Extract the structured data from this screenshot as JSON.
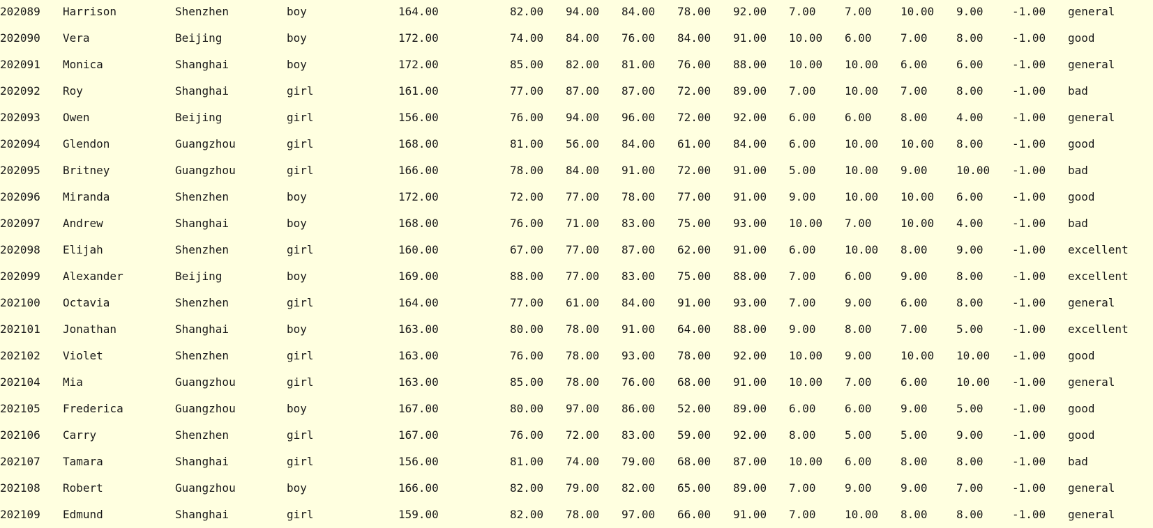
{
  "table": {
    "rows": [
      [
        "202089",
        "Harrison",
        "Shenzhen",
        "boy",
        "164.00",
        "82.00",
        "94.00",
        "84.00",
        "78.00",
        "92.00",
        "7.00",
        "7.00",
        "10.00",
        "9.00",
        "-1.00",
        "general"
      ],
      [
        "202090",
        "Vera",
        "Beijing",
        "boy",
        "172.00",
        "74.00",
        "84.00",
        "76.00",
        "84.00",
        "91.00",
        "10.00",
        "6.00",
        "7.00",
        "8.00",
        "-1.00",
        "good"
      ],
      [
        "202091",
        "Monica",
        "Shanghai",
        "boy",
        "172.00",
        "85.00",
        "82.00",
        "81.00",
        "76.00",
        "88.00",
        "10.00",
        "10.00",
        "6.00",
        "6.00",
        "-1.00",
        "general"
      ],
      [
        "202092",
        "Roy",
        "Shanghai",
        "girl",
        "161.00",
        "77.00",
        "87.00",
        "87.00",
        "72.00",
        "89.00",
        "7.00",
        "10.00",
        "7.00",
        "8.00",
        "-1.00",
        "bad"
      ],
      [
        "202093",
        "Owen",
        "Beijing",
        "girl",
        "156.00",
        "76.00",
        "94.00",
        "96.00",
        "72.00",
        "92.00",
        "6.00",
        "6.00",
        "8.00",
        "4.00",
        "-1.00",
        "general"
      ],
      [
        "202094",
        "Glendon",
        "Guangzhou",
        "girl",
        "168.00",
        "81.00",
        "56.00",
        "84.00",
        "61.00",
        "84.00",
        "6.00",
        "10.00",
        "10.00",
        "8.00",
        "-1.00",
        "good"
      ],
      [
        "202095",
        "Britney",
        "Guangzhou",
        "girl",
        "166.00",
        "78.00",
        "84.00",
        "91.00",
        "72.00",
        "91.00",
        "5.00",
        "10.00",
        "9.00",
        "10.00",
        "-1.00",
        "bad"
      ],
      [
        "202096",
        "Miranda",
        "Shenzhen",
        "boy",
        "172.00",
        "72.00",
        "77.00",
        "78.00",
        "77.00",
        "91.00",
        "9.00",
        "10.00",
        "10.00",
        "6.00",
        "-1.00",
        "good"
      ],
      [
        "202097",
        "Andrew",
        "Shanghai",
        "boy",
        "168.00",
        "76.00",
        "71.00",
        "83.00",
        "75.00",
        "93.00",
        "10.00",
        "7.00",
        "10.00",
        "4.00",
        "-1.00",
        "bad"
      ],
      [
        "202098",
        "Elijah",
        "Shenzhen",
        "girl",
        "160.00",
        "67.00",
        "77.00",
        "87.00",
        "62.00",
        "91.00",
        "6.00",
        "10.00",
        "8.00",
        "9.00",
        "-1.00",
        "excellent"
      ],
      [
        "202099",
        "Alexander",
        "Beijing",
        "boy",
        "169.00",
        "88.00",
        "77.00",
        "83.00",
        "75.00",
        "88.00",
        "7.00",
        "6.00",
        "9.00",
        "8.00",
        "-1.00",
        "excellent"
      ],
      [
        "202100",
        "Octavia",
        "Shenzhen",
        "girl",
        "164.00",
        "77.00",
        "61.00",
        "84.00",
        "91.00",
        "93.00",
        "7.00",
        "9.00",
        "6.00",
        "8.00",
        "-1.00",
        "general"
      ],
      [
        "202101",
        "Jonathan",
        "Shanghai",
        "boy",
        "163.00",
        "80.00",
        "78.00",
        "91.00",
        "64.00",
        "88.00",
        "9.00",
        "8.00",
        "7.00",
        "5.00",
        "-1.00",
        "excellent"
      ],
      [
        "202102",
        "Violet",
        "Shenzhen",
        "girl",
        "163.00",
        "76.00",
        "78.00",
        "93.00",
        "78.00",
        "92.00",
        "10.00",
        "9.00",
        "10.00",
        "10.00",
        "-1.00",
        "good"
      ],
      [
        "202104",
        "Mia",
        "Guangzhou",
        "girl",
        "163.00",
        "85.00",
        "78.00",
        "76.00",
        "68.00",
        "91.00",
        "10.00",
        "7.00",
        "6.00",
        "10.00",
        "-1.00",
        "general"
      ],
      [
        "202105",
        "Frederica",
        "Guangzhou",
        "boy",
        "167.00",
        "80.00",
        "97.00",
        "86.00",
        "52.00",
        "89.00",
        "6.00",
        "6.00",
        "9.00",
        "5.00",
        "-1.00",
        "good"
      ],
      [
        "202106",
        "Carry",
        "Shenzhen",
        "girl",
        "167.00",
        "76.00",
        "72.00",
        "83.00",
        "59.00",
        "92.00",
        "8.00",
        "5.00",
        "5.00",
        "9.00",
        "-1.00",
        "good"
      ],
      [
        "202107",
        "Tamara",
        "Shanghai",
        "girl",
        "156.00",
        "81.00",
        "74.00",
        "79.00",
        "68.00",
        "87.00",
        "10.00",
        "6.00",
        "8.00",
        "8.00",
        "-1.00",
        "bad"
      ],
      [
        "202108",
        "Robert",
        "Guangzhou",
        "boy",
        "166.00",
        "82.00",
        "79.00",
        "82.00",
        "65.00",
        "89.00",
        "7.00",
        "9.00",
        "9.00",
        "7.00",
        "-1.00",
        "general"
      ],
      [
        "202109",
        "Edmund",
        "Shanghai",
        "girl",
        "159.00",
        "82.00",
        "78.00",
        "97.00",
        "66.00",
        "91.00",
        "7.00",
        "10.00",
        "8.00",
        "8.00",
        "-1.00",
        "general"
      ]
    ]
  }
}
